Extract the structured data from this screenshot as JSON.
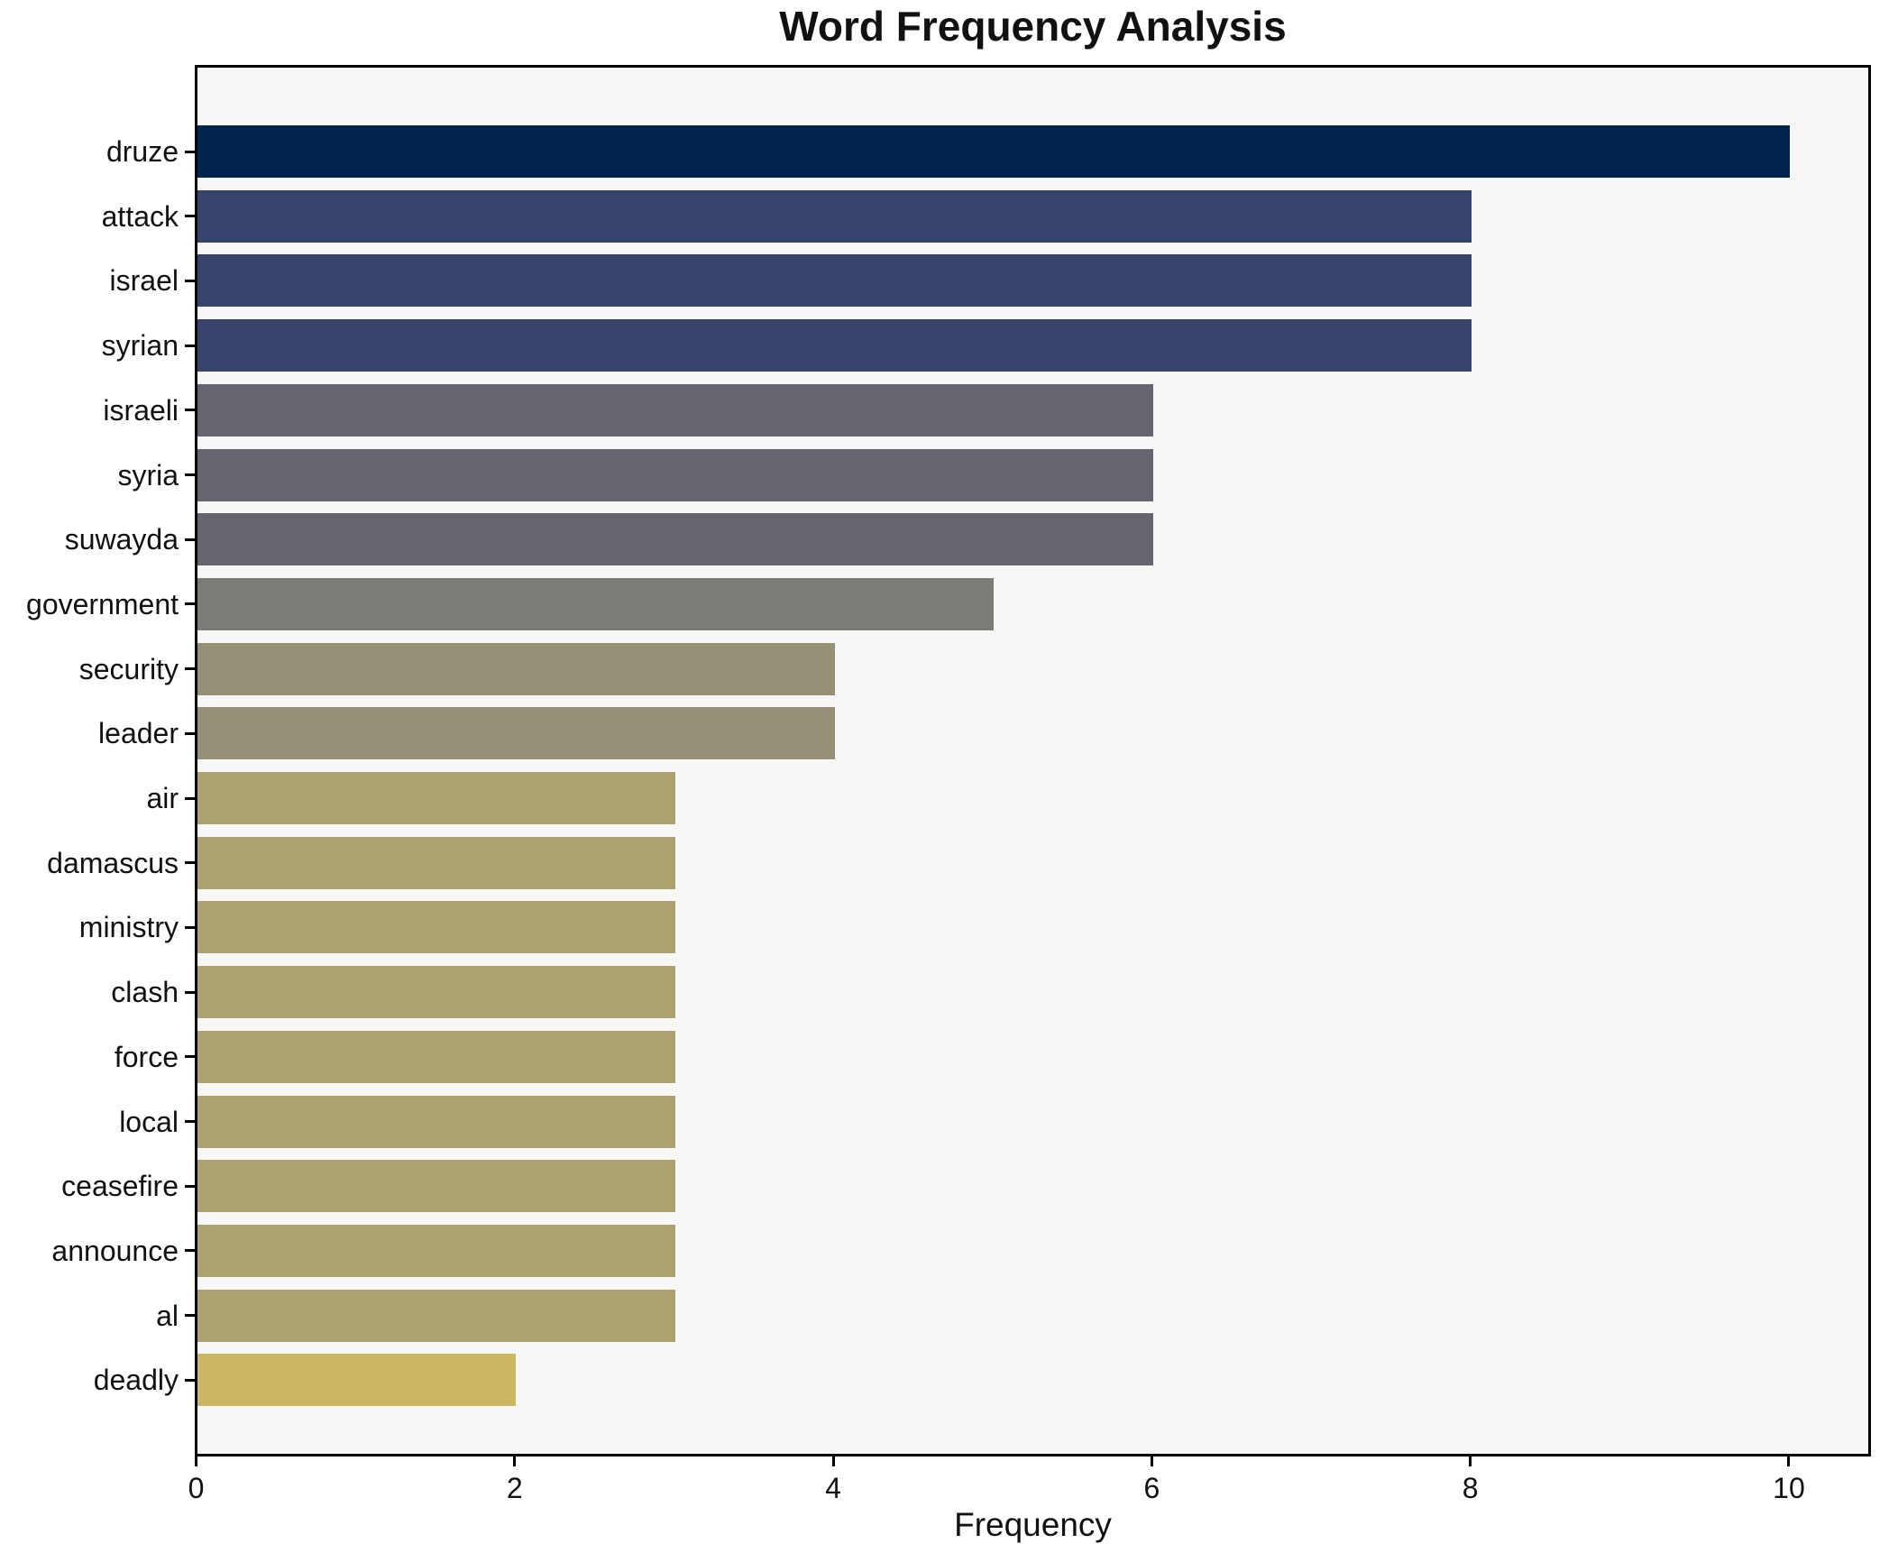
{
  "chart_data": {
    "type": "bar",
    "orientation": "horizontal",
    "title": "Word Frequency Analysis",
    "xlabel": "Frequency",
    "ylabel": "",
    "categories": [
      "druze",
      "attack",
      "israel",
      "syrian",
      "israeli",
      "syria",
      "suwayda",
      "government",
      "security",
      "leader",
      "air",
      "damascus",
      "ministry",
      "clash",
      "force",
      "local",
      "ceasefire",
      "announce",
      "al",
      "deadly"
    ],
    "values": [
      10,
      8,
      8,
      8,
      6,
      6,
      6,
      5,
      4,
      4,
      3,
      3,
      3,
      3,
      3,
      3,
      3,
      3,
      3,
      2
    ],
    "bar_colors": [
      "#02234e",
      "#36446b",
      "#36446b",
      "#36446b",
      "#64656f",
      "#64656f",
      "#64656f",
      "#7b7b77",
      "#958f75",
      "#958f75",
      "#aca26f",
      "#aca26f",
      "#aca26f",
      "#aca26f",
      "#aca26f",
      "#aca26f",
      "#aca26f",
      "#aca26f",
      "#aca26f",
      "#ccb863",
      "_comment: colormap cividis-like, darkest = highest frequency"
    ],
    "xlim": [
      0,
      10.49
    ],
    "x_ticks": [
      "0",
      "2",
      "4",
      "6",
      "8",
      "10"
    ],
    "x_tick_values": [
      0,
      2,
      4,
      6,
      8,
      10
    ],
    "grid": false,
    "legend": null,
    "plot_bg": "#f7f7f6",
    "page_bg": "#ffffff",
    "spine_color": "#000000",
    "text_color": "#111111"
  }
}
